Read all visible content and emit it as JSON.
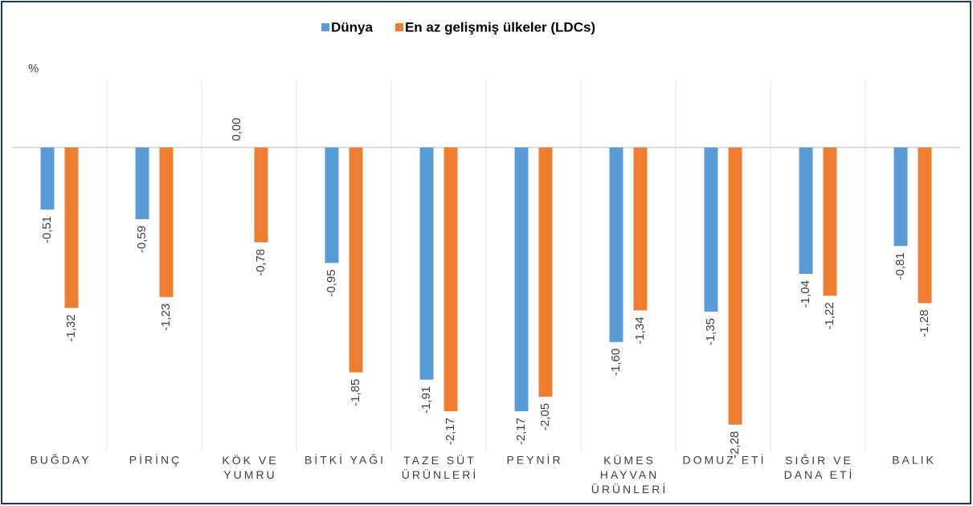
{
  "chart_data": {
    "type": "bar",
    "y_label": "%",
    "categories": [
      "BUĞDAY",
      "PİRİNÇ",
      "KÖK VE\nYUMRU",
      "BİTKİ YAĞI",
      "TAZE SÜT\nÜRÜNLERİ",
      "PEYNİR",
      "KÜMES\nHAYVAN\nÜRÜNLERİ",
      "DOMUZ ETİ",
      "SIĞIR VE\nDANA ETİ",
      "BALIK"
    ],
    "series": [
      {
        "name": "Dünya",
        "color": "#5b9bd5",
        "values": [
          -0.51,
          -0.59,
          0.0,
          -0.95,
          -1.91,
          -2.17,
          -1.6,
          -1.35,
          -1.04,
          -0.81
        ],
        "value_labels": [
          "-0,51",
          "-0,59",
          "0,00",
          "-0,95",
          "-1,91",
          "-2,17",
          "-1,60",
          "-1,35",
          "-1,04",
          "-0,81"
        ]
      },
      {
        "name": "En az gelişmiş ülkeler (LDCs)",
        "color": "#ed7d31",
        "values": [
          -1.32,
          -1.23,
          -0.78,
          -1.85,
          -2.17,
          -2.05,
          -1.34,
          -2.28,
          -1.22,
          -1.28
        ],
        "value_labels": [
          "-1,32",
          "-1,23",
          "-0,78",
          "-1,85",
          "-2,17",
          "-2,05",
          "-1,34",
          "-2,28",
          "-1,22",
          "-1,28"
        ]
      }
    ],
    "ylim": [
      -2.5,
      0.5
    ],
    "legend": "top"
  }
}
